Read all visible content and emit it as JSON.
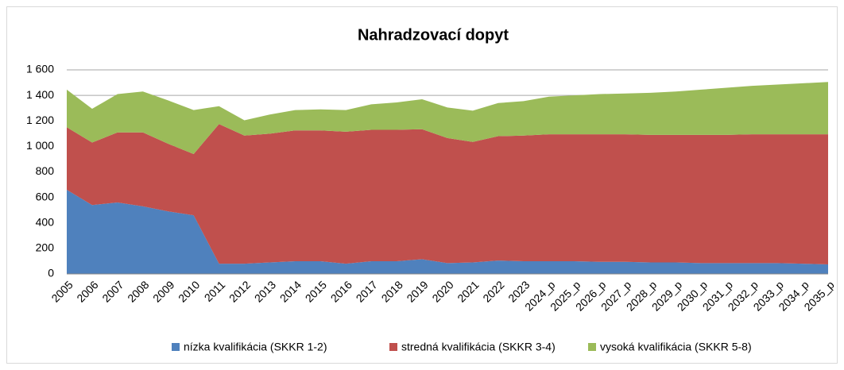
{
  "chart_data": {
    "type": "stacked_area",
    "title": "Nahradzovací dopyt",
    "categories": [
      "2005",
      "2006",
      "2007",
      "2008",
      "2009",
      "2010",
      "2011",
      "2012",
      "2013",
      "2014",
      "2015",
      "2016",
      "2017",
      "2018",
      "2019",
      "2020",
      "2021",
      "2022",
      "2023",
      "2024_p",
      "2025_p",
      "2026_p",
      "2027_p",
      "2028_p",
      "2029_p",
      "2030_p",
      "2031_p",
      "2032_p",
      "2033_p",
      "2034_p",
      "2035_p"
    ],
    "series": [
      {
        "name": "nízka kvalifikácia (SKKR 1-2)",
        "color": "#4f81bd",
        "values": [
          660,
          540,
          560,
          530,
          490,
          460,
          80,
          80,
          90,
          100,
          100,
          80,
          100,
          100,
          115,
          85,
          90,
          105,
          100,
          100,
          100,
          95,
          95,
          90,
          90,
          85,
          85,
          85,
          85,
          80,
          75
        ]
      },
      {
        "name": "stredná kvalifikácia (SKKR 3-4)",
        "color": "#c0504d",
        "values": [
          490,
          490,
          550,
          580,
          530,
          480,
          1095,
          1005,
          1010,
          1025,
          1025,
          1035,
          1030,
          1030,
          1020,
          980,
          945,
          975,
          985,
          995,
          995,
          1000,
          1000,
          1000,
          1000,
          1005,
          1005,
          1010,
          1010,
          1015,
          1020
        ]
      },
      {
        "name": "vysoká kvalifikácia (SKKR 5-8)",
        "color": "#9bbb59",
        "values": [
          295,
          265,
          300,
          320,
          340,
          345,
          140,
          120,
          150,
          160,
          165,
          170,
          200,
          215,
          235,
          240,
          245,
          260,
          270,
          295,
          305,
          315,
          320,
          330,
          340,
          355,
          370,
          380,
          390,
          400,
          410
        ]
      }
    ],
    "ylim": [
      0,
      1600
    ],
    "yticks": [
      0,
      200,
      400,
      600,
      800,
      {
        "value": 1000,
        "label": "1 000"
      },
      {
        "value": 1200,
        "label": "1 200"
      },
      {
        "value": 1400,
        "label": "1 400"
      },
      {
        "value": 1600,
        "label": "1 600"
      }
    ],
    "grid": true,
    "legend": "bottom"
  }
}
